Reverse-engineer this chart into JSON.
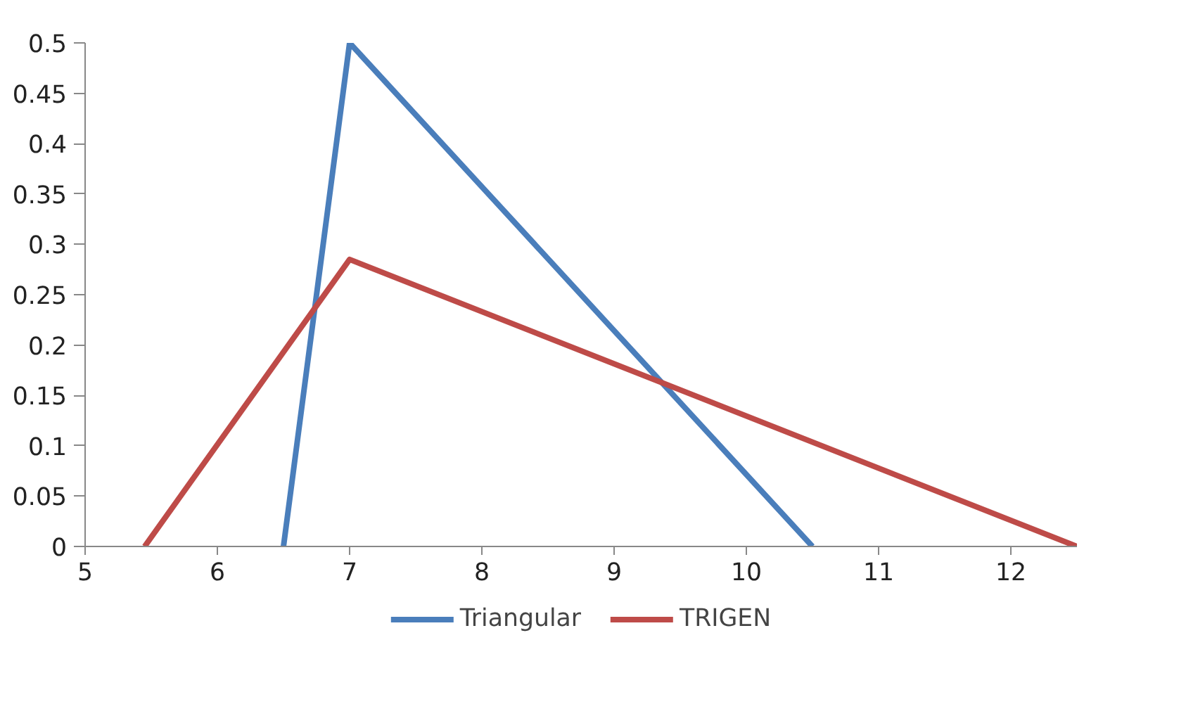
{
  "chart_data": {
    "type": "line",
    "xlim": [
      5,
      12.5
    ],
    "ylim": [
      0,
      0.5
    ],
    "xticks": [
      5,
      6,
      7,
      8,
      9,
      10,
      11,
      12
    ],
    "yticks": [
      0,
      0.05,
      0.1,
      0.15,
      0.2,
      0.25,
      0.3,
      0.35,
      0.4,
      0.45,
      0.5
    ],
    "grid": false,
    "legend": "bottom",
    "marker": "none",
    "line_style": "solid",
    "series": [
      {
        "name": "Triangular",
        "color": "#4a7ebb",
        "x": [
          6.5,
          7,
          10.5
        ],
        "values": [
          0,
          0.5,
          0
        ]
      },
      {
        "name": "TRIGEN",
        "color": "#be4b48",
        "x": [
          5.45,
          7,
          12.5
        ],
        "values": [
          0,
          0.285,
          0
        ]
      }
    ]
  }
}
